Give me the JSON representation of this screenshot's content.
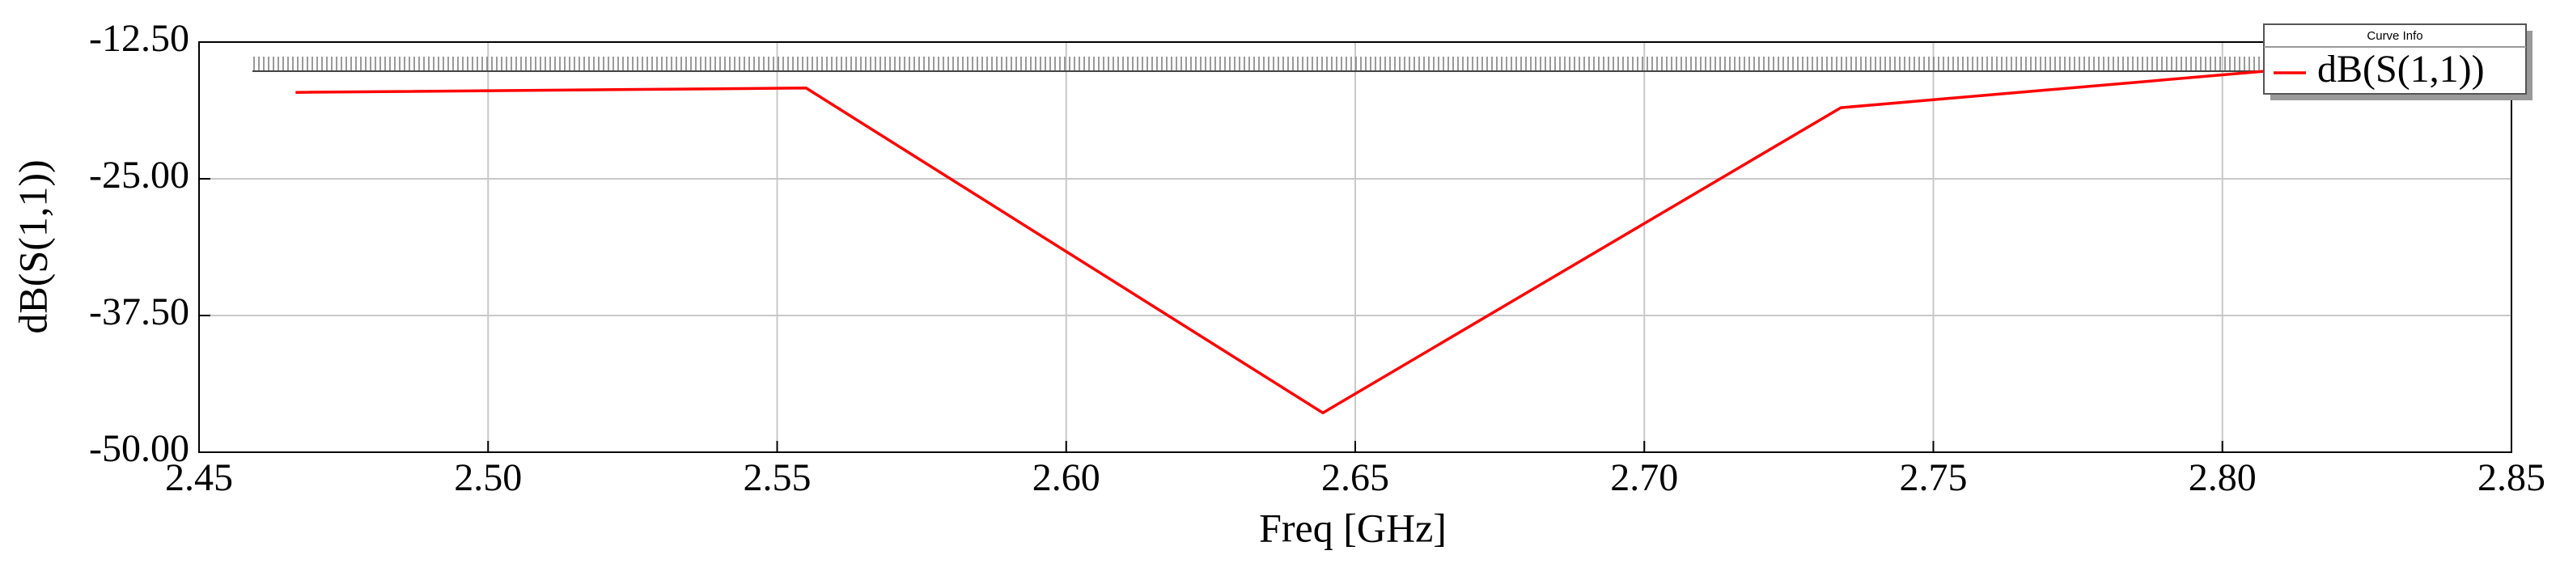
{
  "chart_data": {
    "type": "line",
    "x_label": "Freq [GHz]",
    "y_label": "dB(S(1,1))",
    "legend_title": "Curve Info",
    "legend": "top-right",
    "grid": true,
    "x": [
      2.4667,
      2.555,
      2.6444,
      2.734,
      2.811
    ],
    "series": [
      {
        "name": "dB(S(1,1))",
        "color": "#ff0000",
        "values": [
          -17.1,
          -16.7,
          -46.4,
          -18.5,
          -15.0
        ]
      }
    ],
    "xlim": [
      2.45,
      2.85
    ],
    "xticks": [
      2.45,
      {
        "value": 2.5,
        "label": "2.50"
      },
      2.55,
      {
        "value": 2.6,
        "label": "2.60"
      },
      2.65,
      {
        "value": 2.7,
        "label": "2.70"
      },
      2.75,
      {
        "value": 2.8,
        "label": "2.80"
      },
      2.85
    ],
    "ylim": [
      -50,
      -12.5
    ],
    "yticks": [
      {
        "value": -12.5,
        "label": "-12.50"
      },
      {
        "value": -25,
        "label": "-25.00"
      },
      {
        "value": -37.5,
        "label": "-37.50"
      },
      {
        "value": -50,
        "label": "-50.00"
      }
    ]
  }
}
